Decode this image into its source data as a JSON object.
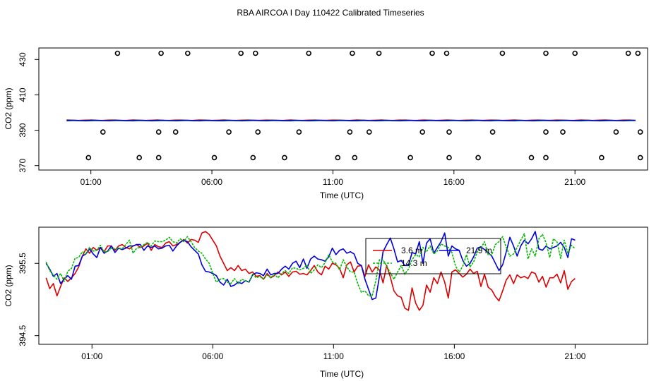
{
  "title": "RBA AIRCOA I  Day 110422  Calibrated Timeseries",
  "chart_data": [
    {
      "type": "line",
      "panel": "top",
      "xlabel": "Time (UTC)",
      "ylabel": "CO2 (ppm)",
      "xlim": [
        -1.15,
        24.0
      ],
      "ylim": [
        367.5,
        436.5
      ],
      "xticks": [
        1,
        6,
        11,
        16,
        21
      ],
      "xtick_labels": [
        "01:00",
        "06:00",
        "11:00",
        "16:00",
        "21:00"
      ],
      "yticks": [
        370,
        390,
        410,
        430
      ],
      "ytick_labels": [
        "370",
        "390",
        "410",
        "430"
      ],
      "colors": {
        "line": "#000000",
        "c1": "#dd0000",
        "c2": "#00bb00",
        "c3": "#0000dd"
      },
      "series_level": 395.5,
      "markers": {
        "rows": [
          {
            "y": 433.5,
            "x": [
              2.1,
              3.9,
              5.0,
              7.2,
              7.8,
              10.0,
              11.8,
              12.9,
              15.1,
              15.7,
              18.0,
              19.8,
              21.0,
              23.2,
              23.6
            ]
          },
          {
            "y": 389.0,
            "x": [
              1.5,
              3.8,
              4.5,
              6.7,
              7.9,
              9.6,
              11.7,
              12.5,
              14.7,
              15.8,
              17.6,
              19.8,
              20.5,
              22.7,
              23.7
            ]
          },
          {
            "y": 374.5,
            "x": [
              0.9,
              3.0,
              3.8,
              6.1,
              7.7,
              9.0,
              11.2,
              11.9,
              14.2,
              15.8,
              17.0,
              19.2,
              19.8,
              22.1,
              23.7
            ]
          }
        ]
      }
    },
    {
      "type": "line",
      "panel": "bottom",
      "xlabel": "Time (UTC)",
      "ylabel": "CO2 (ppm)",
      "xlim": [
        -1.2,
        24.0
      ],
      "ylim": [
        394.38,
        396.0
      ],
      "xticks": [
        1,
        6,
        11,
        16,
        21
      ],
      "xtick_labels": [
        "01:00",
        "06:00",
        "11:00",
        "16:00",
        "21:00"
      ],
      "yticks": [
        394.5,
        395.5
      ],
      "ytick_labels": [
        "394.5",
        "395.5"
      ],
      "legend": {
        "position": "top-center",
        "entries": [
          "3.6 m",
          "21.9 m",
          "14.3 m"
        ]
      },
      "x_start": -0.9,
      "x_step": 0.15,
      "series": [
        {
          "name": "3.6 m",
          "color": "#dd0000",
          "values": [
            395.3,
            395.15,
            395.22,
            395.05,
            395.18,
            395.3,
            395.25,
            395.3,
            395.36,
            395.45,
            395.6,
            395.7,
            395.64,
            395.72,
            395.68,
            395.72,
            395.66,
            395.74,
            395.74,
            395.68,
            395.74,
            395.76,
            395.72,
            395.7,
            395.74,
            395.76,
            395.72,
            395.74,
            395.78,
            395.68,
            395.76,
            395.73,
            395.72,
            395.78,
            395.8,
            395.74,
            395.76,
            395.79,
            395.83,
            395.78,
            395.83,
            395.82,
            395.79,
            395.92,
            395.94,
            395.9,
            395.82,
            395.74,
            395.6,
            395.5,
            395.4,
            395.44,
            395.4,
            395.47,
            395.4,
            395.42,
            395.36,
            395.38,
            395.32,
            395.33,
            395.28,
            395.36,
            395.3,
            395.33,
            395.38,
            395.34,
            395.38,
            395.32,
            395.38,
            395.39,
            395.35,
            395.36,
            395.34,
            395.4,
            395.47,
            395.38,
            395.34,
            395.46,
            395.42,
            395.5,
            395.48,
            395.43,
            395.3,
            395.48,
            395.52,
            395.38,
            395.46,
            395.47,
            395.32,
            395.48,
            395.38,
            395.45,
            395.41,
            395.23,
            395.47,
            395.31,
            395.12,
            395.05,
            395.03,
            394.88,
            394.85,
            395.16,
            394.95,
            394.85,
            394.92,
            395.2,
            395.1,
            395.3,
            395.22,
            395.38,
            395.24,
            395.02,
            395.38,
            395.41,
            395.36,
            395.31,
            395.35,
            395.42,
            395.36,
            395.39,
            395.18,
            395.35,
            395.17,
            395.13,
            395.04,
            394.98,
            395.12,
            395.27,
            395.34,
            395.22,
            395.34,
            395.3,
            395.32,
            395.29,
            395.38,
            395.36,
            395.24,
            395.32,
            395.17,
            395.3,
            395.3,
            395.35,
            395.23,
            395.4,
            395.14,
            395.25,
            395.29
          ]
        },
        {
          "name": "21.9 m",
          "color": "#0000dd",
          "values": [
            395.5,
            395.42,
            395.32,
            395.36,
            395.22,
            395.28,
            395.33,
            395.28,
            395.46,
            395.47,
            395.6,
            395.63,
            395.7,
            395.63,
            395.58,
            395.72,
            395.64,
            395.67,
            395.74,
            395.65,
            395.71,
            395.69,
            395.71,
            395.74,
            395.74,
            395.76,
            395.76,
            395.68,
            395.74,
            395.72,
            395.74,
            395.7,
            395.71,
            395.74,
            395.75,
            395.67,
            395.74,
            395.79,
            395.82,
            395.8,
            395.73,
            395.68,
            395.63,
            395.48,
            395.39,
            395.38,
            395.36,
            395.33,
            395.24,
            395.2,
            395.28,
            395.18,
            395.2,
            395.24,
            395.22,
            395.26,
            395.24,
            395.34,
            395.37,
            395.36,
            395.33,
            395.42,
            395.34,
            395.36,
            395.36,
            395.42,
            395.46,
            395.42,
            395.5,
            395.53,
            395.44,
            395.56,
            395.43,
            395.56,
            395.6,
            395.56,
            395.55,
            395.53,
            395.59,
            395.71,
            395.62,
            395.68,
            395.7,
            395.64,
            395.66,
            395.63,
            395.5,
            395.47,
            395.28,
            395.14,
            395.0,
            395.02,
            395.32,
            395.66,
            395.76,
            395.85,
            395.7,
            395.52,
            395.54,
            395.47,
            395.47,
            395.65,
            395.63,
            395.8,
            395.5,
            395.78,
            395.84,
            395.64,
            395.72,
            395.8,
            395.92,
            395.6,
            395.74,
            395.7,
            395.68,
            395.54,
            395.46,
            395.5,
            395.59,
            395.71,
            395.73,
            395.69,
            395.65,
            395.6,
            395.5,
            395.4,
            395.48,
            395.66,
            395.86,
            395.74,
            395.6,
            395.74,
            395.82,
            395.77,
            395.84,
            395.94,
            395.7,
            395.68,
            395.74,
            395.7,
            395.72,
            395.74,
            395.79,
            395.72,
            395.58,
            395.84,
            395.82
          ]
        },
        {
          "name": "14.3 m",
          "color": "#00bb00",
          "values": [
            395.52,
            395.4,
            395.34,
            395.28,
            395.36,
            395.25,
            395.39,
            395.43,
            395.57,
            395.58,
            395.66,
            395.63,
            395.72,
            395.67,
            395.68,
            395.75,
            395.66,
            395.66,
            395.71,
            395.7,
            395.71,
            395.7,
            395.76,
            395.82,
            395.64,
            395.71,
            395.72,
            395.76,
            395.79,
            395.74,
            395.81,
            395.8,
            395.8,
            395.82,
            395.86,
            395.8,
            395.78,
            395.84,
            395.8,
            395.87,
            395.8,
            395.72,
            395.67,
            395.64,
            395.56,
            395.5,
            395.36,
            395.24,
            395.28,
            395.29,
            395.24,
            395.22,
            395.29,
            395.22,
            395.28,
            395.26,
            395.24,
            395.35,
            395.3,
            395.32,
            395.28,
            395.34,
            395.3,
            395.35,
            395.3,
            395.36,
            395.4,
            395.36,
            395.44,
            395.43,
            395.41,
            395.43,
            395.48,
            395.36,
            395.41,
            395.48,
            395.44,
            395.51,
            395.62,
            395.52,
            395.5,
            395.41,
            395.55,
            395.45,
            395.38,
            395.38,
            395.22,
            395.1,
            395.12,
            395.05,
            395.05,
            395.26,
            395.55,
            395.55,
            395.46,
            395.37,
            395.28,
            395.38,
            395.47,
            395.35,
            395.42,
            395.55,
            395.62,
            395.59,
            395.72,
            395.66,
            395.74,
            395.63,
            395.67,
            395.77,
            395.74,
            395.72,
            395.65,
            395.46,
            395.38,
            395.46,
            395.62,
            395.45,
            395.52,
            395.66,
            395.71,
            395.8,
            395.62,
            395.62,
            395.76,
            395.8,
            395.87,
            395.72,
            395.6,
            395.63,
            395.72,
            395.82,
            395.91,
            395.56,
            395.7,
            395.6,
            395.84,
            395.9,
            395.78,
            395.58,
            395.84,
            395.8,
            395.57,
            395.82,
            395.64,
            395.75,
            395.7
          ]
        }
      ]
    }
  ]
}
